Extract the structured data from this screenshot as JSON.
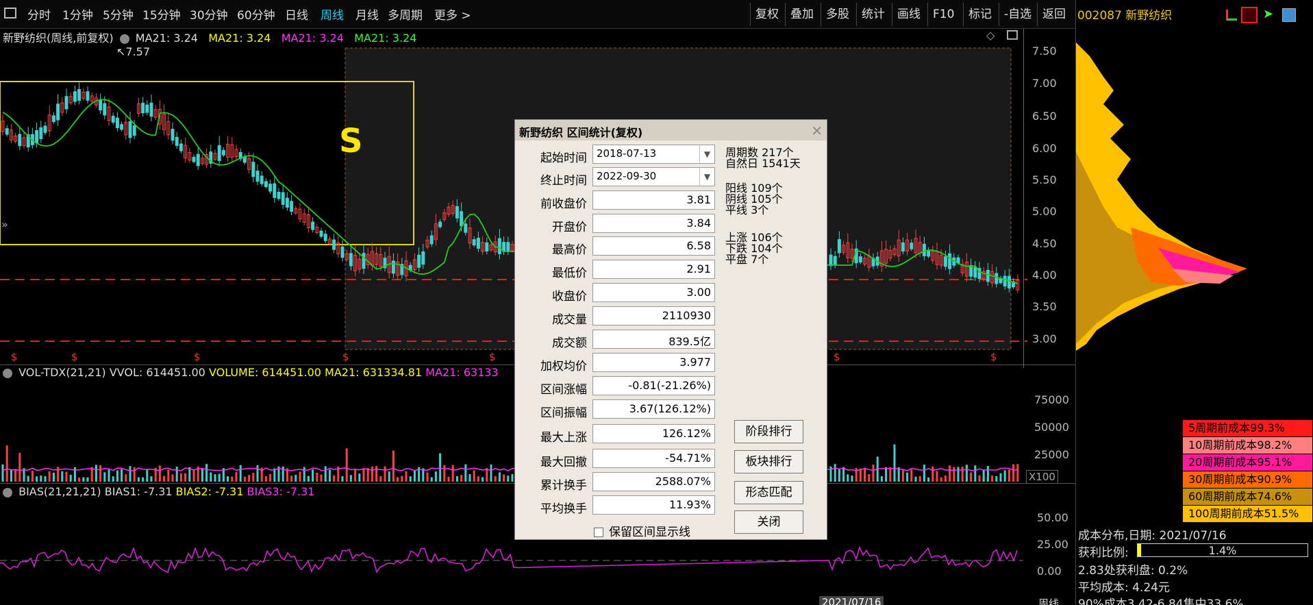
{
  "toolbar": {
    "periods": [
      "分时",
      "1分钟",
      "5分钟",
      "15分钟",
      "30分钟",
      "60分钟",
      "日线",
      "周线",
      "月线",
      "多周期",
      "更多 >"
    ],
    "tools": [
      "复权",
      "叠加",
      "多股",
      "统计",
      "画线",
      "F10",
      "标记",
      "-自选",
      "返回"
    ]
  },
  "stock_title": "002087 新野纺织",
  "main_header": {
    "name": "新野纺织(周线,前复权)",
    "ma1": "MA21: 3.24",
    "ma2": "MA21: 3.24",
    "ma3": "MA21: 3.24",
    "ma4": "MA21: 3.24",
    "high_mark": "7.57",
    "s_label": "S"
  },
  "price_axis": [
    "7.50",
    "7.00",
    "6.50",
    "6.00",
    "5.50",
    "5.00",
    "4.50",
    "4.00",
    "3.50",
    "3.00"
  ],
  "vol_header": {
    "name": "VOL-TDX(21,21)",
    "vvol": "VVOL: 614451.00",
    "volume": "VOLUME: 614451.00",
    "ma21": "MA21: 631334.81",
    "ma21b": "MA21: 63133"
  },
  "vol_axis": [
    "75000",
    "50000",
    "25000"
  ],
  "vol_unit": "X100",
  "bias_header": {
    "name": "BIAS(21,21,21)",
    "b1": "BIAS1: -7.31",
    "b2": "BIAS2: -7.31",
    "b3": "BIAS3: -7.31"
  },
  "bias_axis": [
    "50.00",
    "25.00",
    "0.00"
  ],
  "bottom_axis": {
    "date_label": "2021/07/16",
    "period": "周线"
  },
  "dialog": {
    "title": "新野纺织 区间统计(复权)",
    "start_label": "起始时间",
    "start_date": "2018-07-13",
    "end_label": "终止时间",
    "end_date": "2022-09-30",
    "fields": [
      {
        "label": "前收盘价",
        "value": "3.81"
      },
      {
        "label": "开盘价",
        "value": "3.84"
      },
      {
        "label": "最高价",
        "value": "6.58"
      },
      {
        "label": "最低价",
        "value": "2.91"
      },
      {
        "label": "收盘价",
        "value": "3.00"
      },
      {
        "label": "成交量",
        "value": "2110930"
      },
      {
        "label": "成交额",
        "value": "839.5亿"
      },
      {
        "label": "加权均价",
        "value": "3.977"
      },
      {
        "label": "区间涨幅",
        "value": "-0.81(-21.26%)"
      },
      {
        "label": "区间振幅",
        "value": "3.67(126.12%)"
      },
      {
        "label": "最大上涨",
        "value": "126.12%"
      },
      {
        "label": "最大回撤",
        "value": "-54.71%"
      },
      {
        "label": "累计换手",
        "value": "2588.07%"
      },
      {
        "label": "平均换手",
        "value": "11.93%"
      }
    ],
    "stats": {
      "periods": "周期数 217个",
      "natural_days": "自然日 1541天",
      "yang": "阳线 109个",
      "yin": "阴线 105个",
      "flat_line": "平线 3个",
      "up": "上涨 106个",
      "down": "下跌 104个",
      "flat": "平盘 7个"
    },
    "buttons": [
      "阶段排行",
      "板块排行",
      "形态匹配",
      "关闭"
    ],
    "checkbox_label": "保留区间显示线"
  },
  "cost_legend": [
    {
      "label": "5周期前成本99.3%",
      "color": "#ff1a1a"
    },
    {
      "label": "10周期前成本98.2%",
      "color": "#ff8080"
    },
    {
      "label": "20周期前成本95.1%",
      "color": "#ff1a9c"
    },
    {
      "label": "30周期前成本90.9%",
      "color": "#ff6a00"
    },
    {
      "label": "60周期前成本74.6%",
      "color": "#c8900c"
    },
    {
      "label": "100周期前成本51.5%",
      "color": "#ffc000"
    }
  ],
  "cost_info": {
    "date": "成本分布,日期: 2021/07/16",
    "profit_label": "获利比例:",
    "profit_value": "1.4%",
    "profit_fraction": 0.014,
    "profit_at": "2.83处获利盘: 0.2%",
    "avg_cost": "平均成本: 4.24元",
    "cost90": "90%成本3.42-6.84集中33.6%"
  }
}
